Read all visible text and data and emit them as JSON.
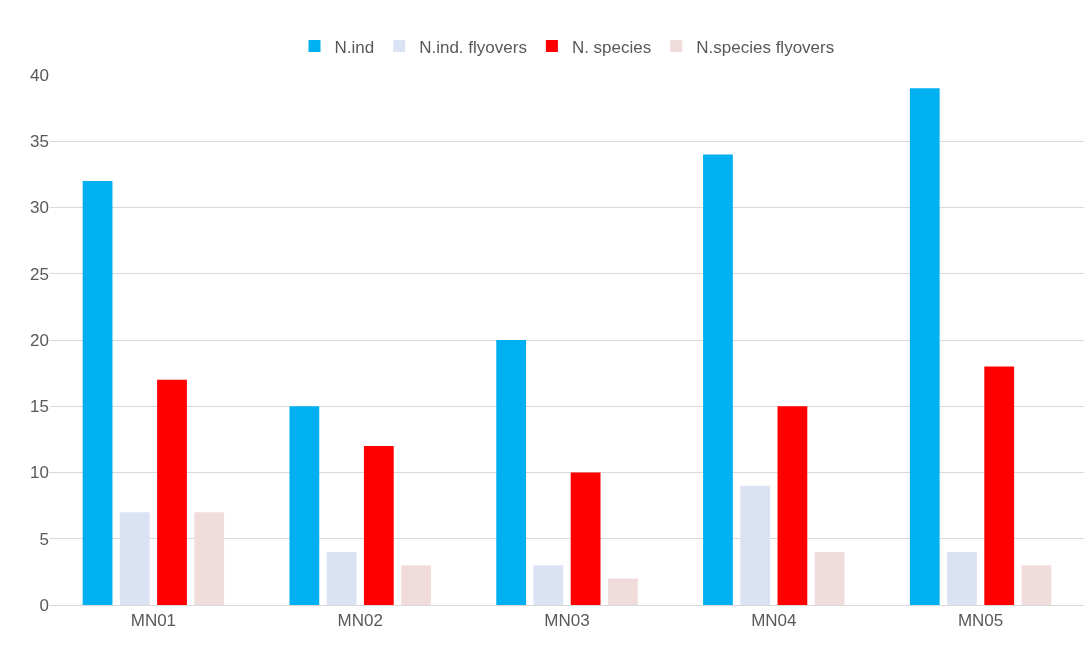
{
  "chart_data": {
    "type": "bar",
    "categories": [
      "MN01",
      "MN02",
      "MN03",
      "MN04",
      "MN05"
    ],
    "series": [
      {
        "name": "N.ind",
        "color": "#00b0f0",
        "values": [
          32,
          15,
          20,
          34,
          39
        ]
      },
      {
        "name": "N.ind. flyovers",
        "color": "#dae3f3",
        "values": [
          7,
          4,
          3,
          9,
          4
        ]
      },
      {
        "name": "N. species",
        "color": "#ff0000",
        "values": [
          17,
          12,
          10,
          15,
          18
        ]
      },
      {
        "name": "N.species flyovers",
        "color": "#f0dcdb",
        "values": [
          7,
          3,
          2,
          4,
          3
        ]
      }
    ],
    "ylim": [
      0,
      40
    ],
    "yticks": [
      0,
      5,
      10,
      15,
      20,
      25,
      30,
      35,
      40
    ],
    "grid": "y",
    "legend": "top"
  }
}
